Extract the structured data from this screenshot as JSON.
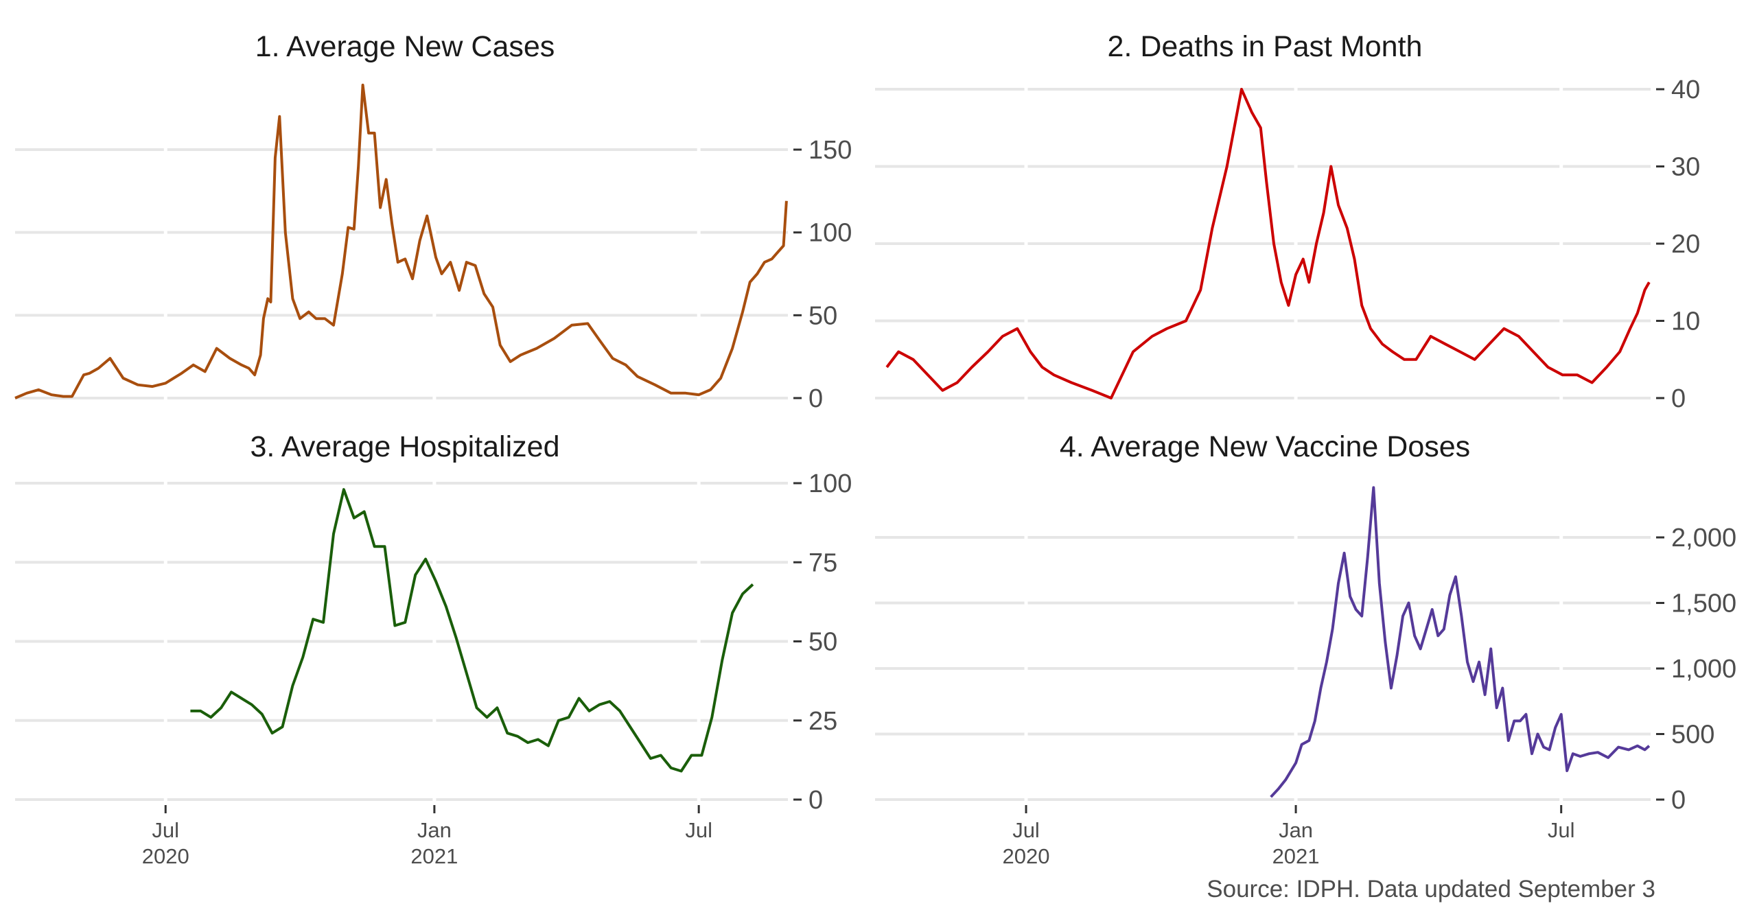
{
  "source": "Source: IDPH. Data updated September 3",
  "chart_data": [
    {
      "type": "line",
      "title": "1. Average New Cases",
      "color": "#A84E0E",
      "y_ticks": [
        0,
        50,
        100,
        150
      ],
      "y_tick_labels": [
        "0",
        "50",
        "100",
        "150"
      ],
      "ylim": [
        0,
        185
      ],
      "x_ticks": [
        "2020-07-01",
        "2021-01-01",
        "2021-07-01"
      ],
      "x_tick_labels": [
        "Jul\n2020",
        "Jan\n2021",
        "Jul"
      ],
      "xlim": [
        "2020-03-20",
        "2021-08-31"
      ],
      "series": [
        {
          "x": [
            "2020-03-20",
            "2020-03-28",
            "2020-04-05",
            "2020-04-14",
            "2020-04-22",
            "2020-04-28",
            "2020-05-06",
            "2020-05-10",
            "2020-05-16",
            "2020-05-24",
            "2020-06-02",
            "2020-06-12",
            "2020-06-22",
            "2020-07-01",
            "2020-07-12",
            "2020-07-20",
            "2020-07-28",
            "2020-08-05",
            "2020-08-14",
            "2020-08-22",
            "2020-08-27",
            "2020-08-31",
            "2020-09-04",
            "2020-09-06",
            "2020-09-09",
            "2020-09-11",
            "2020-09-14",
            "2020-09-17",
            "2020-09-21",
            "2020-09-26",
            "2020-10-01",
            "2020-10-07",
            "2020-10-12",
            "2020-10-18",
            "2020-10-24",
            "2020-10-30",
            "2020-11-03",
            "2020-11-07",
            "2020-11-10",
            "2020-11-13",
            "2020-11-17",
            "2020-11-21",
            "2020-11-25",
            "2020-11-29",
            "2020-12-03",
            "2020-12-07",
            "2020-12-12",
            "2020-12-17",
            "2020-12-22",
            "2020-12-27",
            "2021-01-02",
            "2021-01-06",
            "2021-01-12",
            "2021-01-18",
            "2021-01-23",
            "2021-01-29",
            "2021-02-04",
            "2021-02-10",
            "2021-02-15",
            "2021-02-22",
            "2021-03-01",
            "2021-03-12",
            "2021-03-24",
            "2021-04-05",
            "2021-04-16",
            "2021-04-24",
            "2021-05-03",
            "2021-05-12",
            "2021-05-20",
            "2021-06-01",
            "2021-06-12",
            "2021-06-22",
            "2021-07-01",
            "2021-07-09",
            "2021-07-16",
            "2021-07-24",
            "2021-07-31",
            "2021-08-05",
            "2021-08-10",
            "2021-08-15",
            "2021-08-20",
            "2021-08-24",
            "2021-08-28",
            "2021-08-30"
          ],
          "y": [
            0,
            3,
            5,
            2,
            1,
            1,
            14,
            15,
            18,
            24,
            12,
            8,
            7,
            9,
            15,
            20,
            16,
            30,
            24,
            20,
            18,
            14,
            26,
            48,
            60,
            58,
            145,
            170,
            100,
            60,
            48,
            52,
            48,
            48,
            44,
            75,
            103,
            102,
            140,
            189,
            160,
            160,
            115,
            132,
            105,
            82,
            84,
            72,
            95,
            110,
            85,
            75,
            82,
            65,
            82,
            80,
            63,
            55,
            32,
            22,
            26,
            30,
            36,
            44,
            45,
            35,
            24,
            20,
            13,
            8,
            3,
            3,
            2,
            5,
            12,
            30,
            52,
            70,
            75,
            82,
            84,
            88,
            92,
            119
          ]
        }
      ]
    },
    {
      "type": "line",
      "title": "2. Deaths in Past Month",
      "color": "#CC0000",
      "y_ticks": [
        0,
        10,
        20,
        30,
        40
      ],
      "y_tick_labels": [
        "0",
        "10",
        "20",
        "30",
        "40"
      ],
      "ylim": [
        0,
        40
      ],
      "x_ticks": [
        "2020-07-01",
        "2021-01-01",
        "2021-07-01"
      ],
      "x_tick_labels": [
        "Jul\n2020",
        "Jan\n2021",
        "Jul"
      ],
      "xlim": [
        "2020-03-20",
        "2021-08-31"
      ],
      "series": [
        {
          "x": [
            "2020-03-28",
            "2020-04-05",
            "2020-04-15",
            "2020-04-25",
            "2020-05-05",
            "2020-05-15",
            "2020-05-25",
            "2020-06-05",
            "2020-06-15",
            "2020-06-25",
            "2020-07-04",
            "2020-07-12",
            "2020-07-20",
            "2020-08-01",
            "2020-08-15",
            "2020-08-28",
            "2020-09-12",
            "2020-09-25",
            "2020-10-05",
            "2020-10-18",
            "2020-10-28",
            "2020-11-05",
            "2020-11-15",
            "2020-11-25",
            "2020-12-02",
            "2020-12-08",
            "2020-12-12",
            "2020-12-17",
            "2020-12-22",
            "2020-12-27",
            "2021-01-01",
            "2021-01-06",
            "2021-01-10",
            "2021-01-15",
            "2021-01-20",
            "2021-01-25",
            "2021-01-30",
            "2021-02-05",
            "2021-02-10",
            "2021-02-15",
            "2021-02-21",
            "2021-03-01",
            "2021-03-08",
            "2021-03-16",
            "2021-03-24",
            "2021-04-03",
            "2021-04-13",
            "2021-04-23",
            "2021-05-03",
            "2021-05-13",
            "2021-05-23",
            "2021-06-02",
            "2021-06-12",
            "2021-06-22",
            "2021-07-02",
            "2021-07-12",
            "2021-07-22",
            "2021-08-01",
            "2021-08-10",
            "2021-08-17",
            "2021-08-22",
            "2021-08-27",
            "2021-08-30"
          ],
          "y": [
            4,
            6,
            5,
            3,
            1,
            2,
            4,
            6,
            8,
            9,
            6,
            4,
            3,
            2,
            1,
            0,
            6,
            8,
            9,
            10,
            14,
            22,
            30,
            40,
            37,
            35,
            28,
            20,
            15,
            12,
            16,
            18,
            15,
            20,
            24,
            30,
            25,
            22,
            18,
            12,
            9,
            7,
            6,
            5,
            5,
            8,
            7,
            6,
            5,
            7,
            9,
            8,
            6,
            4,
            3,
            3,
            2,
            4,
            6,
            9,
            11,
            14,
            15
          ]
        }
      ]
    },
    {
      "type": "line",
      "title": "3. Average Hospitalized",
      "color": "#1A5E0A",
      "y_ticks": [
        0,
        25,
        50,
        75,
        100
      ],
      "y_tick_labels": [
        "0",
        "25",
        "50",
        "75",
        "100"
      ],
      "ylim": [
        0,
        100
      ],
      "x_ticks": [
        "2020-07-01",
        "2021-01-01",
        "2021-07-01"
      ],
      "x_tick_labels": [
        "Jul\n2020",
        "Jan\n2021",
        "Jul"
      ],
      "xlim": [
        "2020-03-20",
        "2021-08-31"
      ],
      "series": [
        {
          "x": [
            "2020-07-18",
            "2020-07-25",
            "2020-08-01",
            "2020-08-08",
            "2020-08-15",
            "2020-08-22",
            "2020-08-29",
            "2020-09-05",
            "2020-09-12",
            "2020-09-19",
            "2020-09-26",
            "2020-10-03",
            "2020-10-10",
            "2020-10-17",
            "2020-10-24",
            "2020-10-31",
            "2020-11-07",
            "2020-11-14",
            "2020-11-21",
            "2020-11-28",
            "2020-12-05",
            "2020-12-12",
            "2020-12-19",
            "2020-12-26",
            "2021-01-02",
            "2021-01-09",
            "2021-01-16",
            "2021-01-23",
            "2021-01-30",
            "2021-02-06",
            "2021-02-13",
            "2021-02-20",
            "2021-02-27",
            "2021-03-06",
            "2021-03-13",
            "2021-03-20",
            "2021-03-27",
            "2021-04-03",
            "2021-04-10",
            "2021-04-17",
            "2021-04-24",
            "2021-05-01",
            "2021-05-08",
            "2021-05-15",
            "2021-05-22",
            "2021-05-29",
            "2021-06-05",
            "2021-06-12",
            "2021-06-19",
            "2021-06-26",
            "2021-07-03",
            "2021-07-10",
            "2021-07-17",
            "2021-07-24",
            "2021-07-31",
            "2021-08-07",
            "2021-08-14",
            "2021-08-21",
            "2021-08-28"
          ],
          "y": [
            28,
            28,
            26,
            29,
            34,
            32,
            30,
            27,
            21,
            23,
            36,
            45,
            57,
            56,
            84,
            98,
            89,
            91,
            80,
            80,
            55,
            56,
            71,
            76,
            69,
            61,
            51,
            40,
            29,
            26,
            29,
            21,
            20,
            18,
            19,
            17,
            25,
            26,
            32,
            28,
            30,
            31,
            28,
            23,
            18,
            13,
            14,
            10,
            9,
            14,
            14,
            26,
            44,
            59,
            65,
            68,
            null,
            null,
            null
          ]
        }
      ]
    },
    {
      "type": "line",
      "title": "4. Average New Vaccine Doses",
      "color": "#553A99",
      "y_ticks": [
        0,
        500,
        1000,
        1500,
        2000
      ],
      "y_tick_labels": [
        "0",
        "500",
        "1,000",
        "1,500",
        "2,000"
      ],
      "ylim": [
        0,
        2400
      ],
      "x_ticks": [
        "2020-07-01",
        "2021-01-01",
        "2021-07-01"
      ],
      "x_tick_labels": [
        "Jul\n2020",
        "Jan\n2021",
        "Jul"
      ],
      "xlim": [
        "2020-03-20",
        "2021-08-31"
      ],
      "series": [
        {
          "x": [
            "2020-12-15",
            "2020-12-20",
            "2020-12-25",
            "2021-01-01",
            "2021-01-05",
            "2021-01-10",
            "2021-01-14",
            "2021-01-18",
            "2021-01-22",
            "2021-01-26",
            "2021-01-30",
            "2021-02-03",
            "2021-02-07",
            "2021-02-11",
            "2021-02-15",
            "2021-02-19",
            "2021-02-23",
            "2021-02-27",
            "2021-03-03",
            "2021-03-07",
            "2021-03-11",
            "2021-03-15",
            "2021-03-19",
            "2021-03-23",
            "2021-03-27",
            "2021-03-31",
            "2021-04-04",
            "2021-04-08",
            "2021-04-12",
            "2021-04-16",
            "2021-04-20",
            "2021-04-24",
            "2021-04-28",
            "2021-05-02",
            "2021-05-06",
            "2021-05-10",
            "2021-05-14",
            "2021-05-18",
            "2021-05-22",
            "2021-05-26",
            "2021-05-30",
            "2021-06-03",
            "2021-06-07",
            "2021-06-11",
            "2021-06-15",
            "2021-06-19",
            "2021-06-23",
            "2021-06-27",
            "2021-07-01",
            "2021-07-05",
            "2021-07-09",
            "2021-07-14",
            "2021-07-20",
            "2021-07-26",
            "2021-08-02",
            "2021-08-09",
            "2021-08-16",
            "2021-08-22",
            "2021-08-27",
            "2021-08-30"
          ],
          "y": [
            20,
            80,
            150,
            280,
            420,
            450,
            600,
            850,
            1050,
            1300,
            1650,
            1880,
            1550,
            1450,
            1400,
            1850,
            2380,
            1650,
            1200,
            850,
            1100,
            1400,
            1500,
            1250,
            1150,
            1300,
            1450,
            1250,
            1300,
            1560,
            1700,
            1400,
            1050,
            900,
            1050,
            800,
            1150,
            700,
            850,
            450,
            600,
            600,
            650,
            350,
            500,
            400,
            380,
            550,
            650,
            220,
            350,
            330,
            350,
            360,
            320,
            400,
            380,
            410,
            380,
            410
          ]
        }
      ]
    }
  ]
}
